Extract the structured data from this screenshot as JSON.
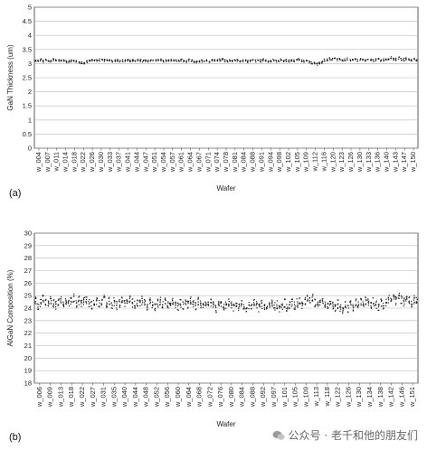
{
  "panels": [
    {
      "label": "(a)"
    },
    {
      "label": "(b)"
    }
  ],
  "watermark": {
    "text": "公众号 · 老千和他的朋友们",
    "icon": "wechat-icon"
  },
  "chart_data": [
    {
      "type": "scatter",
      "xlabel": "Wafer",
      "ylabel": "GaN Thickness (um)",
      "ylim": [
        0,
        5
      ],
      "yticks": [
        0,
        0.5,
        1,
        1.5,
        2,
        2.5,
        3,
        3.5,
        4,
        4.5,
        5
      ],
      "grid": true,
      "x_count": 150,
      "tick_labels": [
        "w_004",
        "w_007",
        "w_011",
        "w_014",
        "w_018",
        "w_022",
        "w_026",
        "w_030",
        "w_033",
        "w_037",
        "w_041",
        "w_044",
        "w_047",
        "w_051",
        "w_054",
        "w_057",
        "w_061",
        "w_064",
        "w_067",
        "w_071",
        "w_074",
        "w_078",
        "w_081",
        "w_084",
        "w_088",
        "w_091",
        "w_094",
        "w_098",
        "w_102",
        "w_105",
        "w_109",
        "w_112",
        "w_116",
        "w_120",
        "w_123",
        "w_126",
        "w_130",
        "w_133",
        "w_136",
        "w_140",
        "w_143",
        "w_147",
        "w_150"
      ],
      "series": [
        {
          "values": [
            3.12,
            3.1,
            3.13,
            3.08,
            3.15,
            3.11,
            3.09,
            3.14,
            3.12,
            3.1,
            3.11,
            3.13,
            3.07,
            3.09,
            3.1,
            3.12,
            3.08,
            3.06,
            3.04,
            3.03,
            3.07,
            3.09,
            3.11,
            3.1,
            3.12,
            3.13,
            3.15,
            3.12,
            3.14,
            3.11,
            3.09,
            3.1,
            3.12,
            3.08,
            3.1,
            3.11,
            3.13,
            3.09,
            3.12,
            3.1,
            3.14,
            3.11,
            3.09,
            3.12,
            3.1,
            3.13,
            3.15,
            3.11,
            3.12,
            3.14,
            3.1,
            3.12,
            3.09,
            3.11,
            3.13,
            3.12,
            3.1,
            3.14,
            3.11,
            3.09,
            3.12,
            3.1,
            3.06,
            3.05,
            3.07,
            3.09,
            3.1,
            3.12,
            3.09,
            3.11,
            3.13,
            3.1,
            3.12,
            3.14,
            3.11,
            3.09,
            3.12,
            3.1,
            3.13,
            3.11,
            3.09,
            3.1,
            3.12,
            3.08,
            3.1,
            3.11,
            3.09,
            3.12,
            3.1,
            3.13,
            3.11,
            3.08,
            3.1,
            3.12,
            3.09,
            3.11,
            3.13,
            3.1,
            3.12,
            3.09,
            3.11,
            3.1,
            3.12,
            3.14,
            3.11,
            3.1,
            3.08,
            3.05,
            3.03,
            3.02,
            2.98,
            3.02,
            3.05,
            3.12,
            3.14,
            3.16,
            3.15,
            3.17,
            3.13,
            3.15,
            3.12,
            3.14,
            3.16,
            3.13,
            3.11,
            3.14,
            3.12,
            3.15,
            3.13,
            3.1,
            3.12,
            3.14,
            3.11,
            3.13,
            3.15,
            3.12,
            3.14,
            3.16,
            3.18,
            3.2,
            3.17,
            3.15,
            3.19,
            3.16,
            3.14,
            3.17,
            3.15,
            3.13,
            3.16,
            3.14
          ]
        }
      ]
    },
    {
      "type": "scatter",
      "xlabel": "Wafer",
      "ylabel": "AlGaN Composition (%)",
      "ylim": [
        18,
        30
      ],
      "yticks": [
        18,
        19,
        20,
        21,
        22,
        23,
        24,
        25,
        26,
        27,
        28,
        29,
        30
      ],
      "grid": true,
      "x_count": 151,
      "tick_labels": [
        "w_006",
        "w_009",
        "w_013",
        "w_018",
        "w_022",
        "w_027",
        "w_031",
        "w_035",
        "w_040",
        "w_044",
        "w_048",
        "w_052",
        "w_056",
        "w_060",
        "w_064",
        "w_068",
        "w_072",
        "w_076",
        "w_080",
        "w_084",
        "w_088",
        "w_092",
        "w_097",
        "w_101",
        "w_105",
        "w_109",
        "w_113",
        "w_118",
        "w_122",
        "w_126",
        "w_130",
        "w_134",
        "w_138",
        "w_142",
        "w_146",
        "w_151"
      ],
      "series": [
        {
          "values": [
            24.6,
            24.2,
            24.4,
            24.7,
            24.5,
            24.3,
            24.6,
            24.4,
            24.2,
            24.5,
            24.7,
            24.4,
            24.6,
            24.3,
            24.5,
            24.8,
            24.4,
            24.6,
            24.3,
            24.5,
            24.7,
            24.4,
            24.2,
            24.5,
            24.6,
            24.3,
            24.5,
            24.7,
            24.4,
            24.6,
            24.3,
            24.5,
            24.2,
            24.4,
            24.6,
            24.3,
            24.5,
            24.7,
            24.4,
            24.2,
            24.5,
            24.3,
            24.6,
            24.4,
            24.2,
            24.5,
            24.3,
            24.1,
            24.4,
            24.6,
            24.3,
            24.5,
            24.2,
            24.4,
            24.6,
            24.3,
            24.1,
            24.4,
            24.2,
            24.5,
            24.3,
            24.6,
            24.4,
            24.2,
            24.5,
            24.3,
            24.1,
            24.4,
            24.2,
            24.5,
            24.3,
            24.0,
            24.2,
            24.4,
            24.1,
            24.3,
            24.5,
            24.2,
            24.0,
            24.3,
            24.1,
            24.4,
            24.2,
            24.0,
            24.3,
            24.1,
            24.4,
            24.2,
            24.0,
            24.3,
            24.1,
            23.9,
            24.2,
            24.4,
            24.1,
            24.3,
            24.0,
            24.2,
            24.4,
            24.1,
            24.3,
            24.5,
            24.2,
            24.4,
            24.6,
            24.3,
            24.5,
            24.8,
            24.6,
            24.9,
            24.4,
            24.2,
            24.5,
            24.7,
            24.3,
            24.1,
            24.4,
            24.2,
            24.0,
            24.3,
            24.1,
            23.9,
            24.2,
            24.0,
            24.3,
            24.1,
            24.4,
            24.2,
            24.5,
            24.3,
            24.6,
            24.4,
            24.2,
            24.5,
            24.3,
            24.1,
            24.4,
            24.2,
            24.5,
            24.7,
            24.5,
            24.8,
            24.6,
            24.9,
            24.7,
            24.5,
            24.8,
            24.6,
            24.4,
            24.7,
            24.5
          ]
        }
      ]
    }
  ]
}
